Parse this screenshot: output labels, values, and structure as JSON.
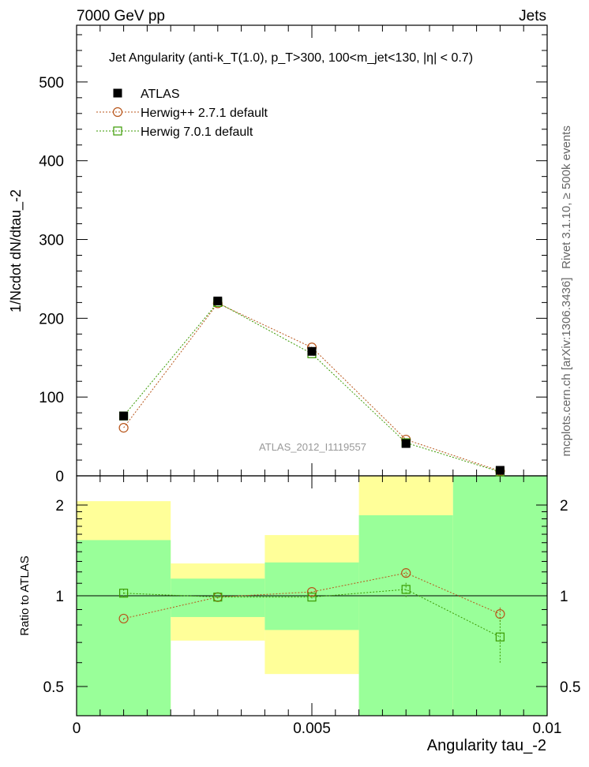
{
  "header": {
    "left": "7000 GeV pp",
    "right": "Jets"
  },
  "side": {
    "rivet": "Rivet 3.1.10, ≥ 500k events",
    "mcplots": "mcplots.cern.ch [arXiv:1306.3436]"
  },
  "chart_data": [
    {
      "type": "line",
      "title": "Jet Angularity  (anti-k_T(1.0), p_T>300, 100<m_jet<130, |η| < 0.7)",
      "ylabel": "1/Ncdot dN/dtau_-2",
      "xlabel": "Angularity tau_-2",
      "watermark": "ATLAS_2012_I1119557",
      "xlim": [
        0,
        0.01
      ],
      "ylim": [
        0,
        572
      ],
      "yticks": [
        0,
        100,
        200,
        300,
        400,
        500
      ],
      "x": [
        0.001,
        0.003,
        0.005,
        0.007,
        0.009
      ],
      "series": [
        {
          "name": "ATLAS",
          "color": "#000000",
          "marker": "filled-square",
          "values": [
            76,
            222,
            158,
            41,
            7
          ]
        },
        {
          "name": "Herwig++ 2.7.1 default",
          "color": "#b8561b",
          "marker": "open-circle",
          "values": [
            61,
            219,
            163,
            46,
            6
          ]
        },
        {
          "name": "Herwig 7.0.1 default",
          "color": "#3a9a00",
          "marker": "open-square",
          "values": [
            76,
            220,
            155,
            42,
            5
          ]
        }
      ],
      "legend_position": "top-left"
    },
    {
      "type": "line",
      "ylabel": "Ratio to ATLAS",
      "xlabel": "Angularity tau_-2",
      "yscale": "log",
      "ylim": [
        0.4,
        2.5
      ],
      "yticks": [
        0.5,
        1,
        2
      ],
      "xticks": [
        0,
        0.005,
        0.01
      ],
      "xtick_labels": [
        "0",
        "0.005",
        "0.01"
      ],
      "bins": [
        [
          0,
          0.002
        ],
        [
          0.002,
          0.004
        ],
        [
          0.004,
          0.006
        ],
        [
          0.006,
          0.008
        ],
        [
          0.008,
          0.01
        ]
      ],
      "band_total": [
        [
          0.4,
          2.06
        ],
        [
          0.71,
          1.28
        ],
        [
          0.55,
          1.59
        ],
        [
          0.4,
          2.5
        ],
        [
          0.4,
          2.5
        ]
      ],
      "band_stat": [
        [
          0.4,
          1.53
        ],
        [
          0.85,
          1.14
        ],
        [
          0.77,
          1.29
        ],
        [
          0.4,
          1.85
        ],
        [
          0.4,
          2.5
        ]
      ],
      "band_colors": {
        "total": "#ffff99",
        "stat": "#99ff99"
      },
      "x": [
        0.001,
        0.003,
        0.005,
        0.007,
        0.009
      ],
      "series": [
        {
          "name": "Herwig++ 2.7.1 default",
          "color": "#b8561b",
          "marker": "open-circle",
          "values": [
            0.84,
            0.99,
            1.03,
            1.19,
            0.87
          ],
          "err": [
            0.01,
            0.01,
            0.01,
            0.03,
            0.05
          ]
        },
        {
          "name": "Herwig 7.0.1 default",
          "color": "#3a9a00",
          "marker": "open-square",
          "values": [
            1.02,
            0.99,
            0.99,
            1.05,
            0.73
          ],
          "err": [
            0.03,
            0.01,
            0.01,
            0.06,
            0.13
          ]
        }
      ]
    }
  ]
}
